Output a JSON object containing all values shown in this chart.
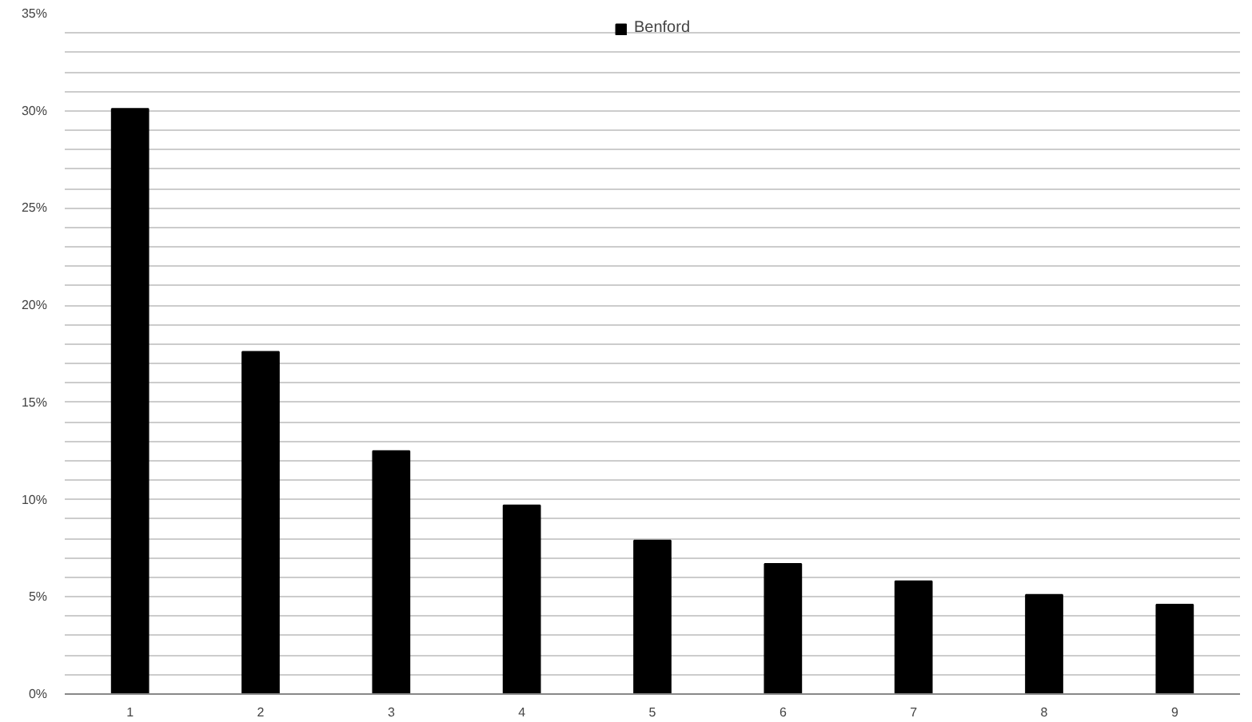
{
  "chart_data": {
    "type": "bar",
    "categories": [
      "1",
      "2",
      "3",
      "4",
      "5",
      "6",
      "7",
      "8",
      "9"
    ],
    "series": [
      {
        "name": "Benford",
        "color": "#000000",
        "values": [
          30.1,
          17.6,
          12.5,
          9.7,
          7.9,
          6.7,
          5.8,
          5.1,
          4.6
        ]
      }
    ],
    "ylim": [
      0,
      35
    ],
    "yticks": [
      {
        "value": 0,
        "label": "0%"
      },
      {
        "value": 1,
        "label": null
      },
      {
        "value": 2,
        "label": null
      },
      {
        "value": 3,
        "label": null
      },
      {
        "value": 4,
        "label": null
      },
      {
        "value": 5,
        "label": "5%"
      },
      {
        "value": 6,
        "label": null
      },
      {
        "value": 7,
        "label": null
      },
      {
        "value": 8,
        "label": null
      },
      {
        "value": 9,
        "label": null
      },
      {
        "value": 10,
        "label": "10%"
      },
      {
        "value": 11,
        "label": null
      },
      {
        "value": 12,
        "label": null
      },
      {
        "value": 13,
        "label": null
      },
      {
        "value": 14,
        "label": null
      },
      {
        "value": 15,
        "label": "15%"
      },
      {
        "value": 16,
        "label": null
      },
      {
        "value": 17,
        "label": null
      },
      {
        "value": 18,
        "label": null
      },
      {
        "value": 19,
        "label": null
      },
      {
        "value": 20,
        "label": "20%"
      },
      {
        "value": 21,
        "label": null
      },
      {
        "value": 22,
        "label": null
      },
      {
        "value": 23,
        "label": null
      },
      {
        "value": 24,
        "label": null
      },
      {
        "value": 25,
        "label": "25%"
      },
      {
        "value": 26,
        "label": null
      },
      {
        "value": 27,
        "label": null
      },
      {
        "value": 28,
        "label": null
      },
      {
        "value": 29,
        "label": null
      },
      {
        "value": 30,
        "label": "30%"
      },
      {
        "value": 31,
        "label": null
      },
      {
        "value": 32,
        "label": null
      },
      {
        "value": 33,
        "label": null
      },
      {
        "value": 34,
        "label": null
      },
      {
        "value": 35,
        "label": "35%"
      }
    ],
    "grid": "y",
    "legend": "top"
  }
}
